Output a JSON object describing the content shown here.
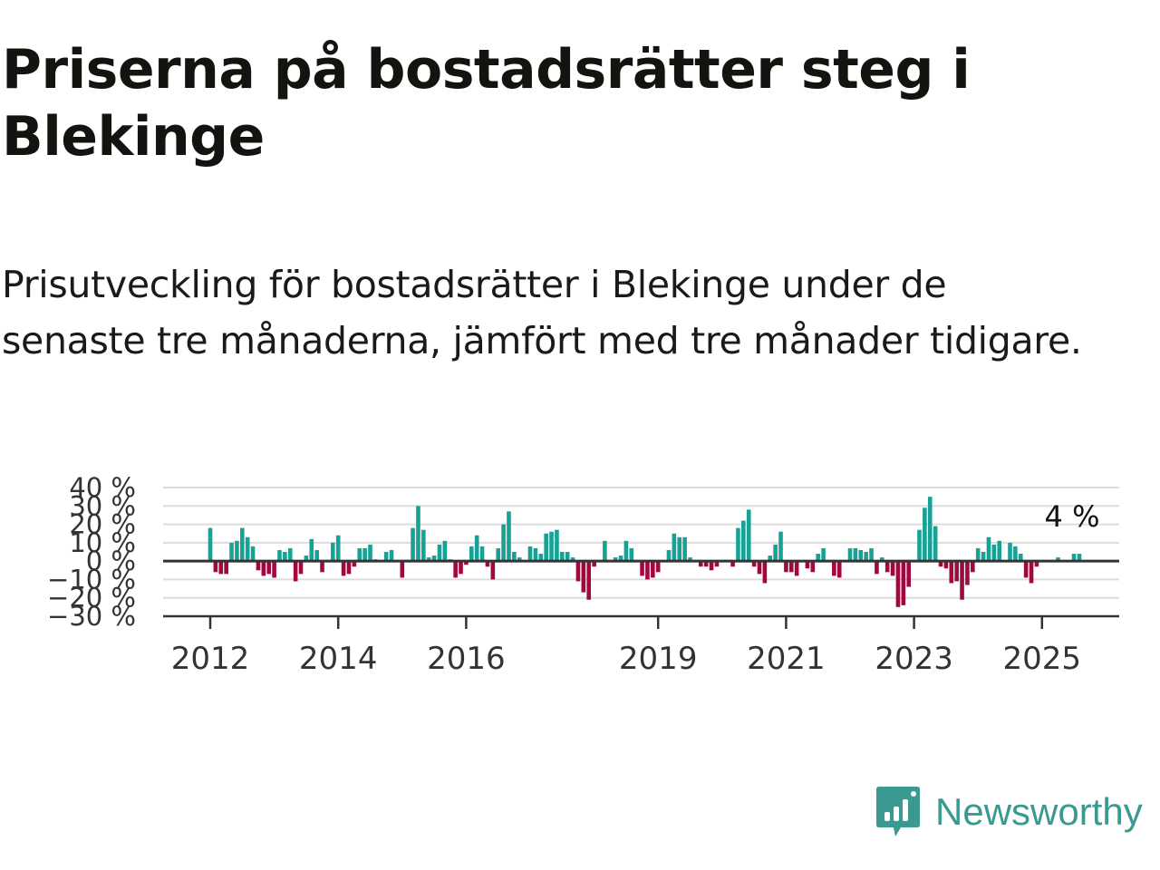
{
  "title": "Priserna på bostadsrätter steg i Blekinge",
  "subtitle": "Prisutveckling för bostadsrätter i Blekinge under de senaste tre månaderna, jämfört med tre månader tidigare.",
  "brand": {
    "name": "Newsworthy",
    "color": "#3a9a92"
  },
  "chart_data": {
    "type": "bar",
    "x_start": "2012-01",
    "y_unit": "%",
    "ylim": [
      -30,
      40
    ],
    "y_ticks": [
      40,
      30,
      20,
      10,
      0,
      -10,
      -20,
      -30
    ],
    "y_tick_labels": [
      "40 %",
      "30 %",
      "20 %",
      "10 %",
      "0 %",
      "−10 %",
      "−20 %",
      "−30 %"
    ],
    "x_ticks": [
      "2012",
      "2014",
      "2016",
      "2019",
      "2021",
      "2023",
      "2025"
    ],
    "grid": true,
    "positive_color": "#16a294",
    "negative_color": "#a3073f",
    "last_value_label": "4 %",
    "values": [
      18,
      -6,
      -7,
      -7,
      10,
      11,
      18,
      13,
      8,
      -5,
      -8,
      -7,
      -9,
      6,
      5,
      7,
      -11,
      -7,
      3,
      12,
      6,
      -6,
      0,
      10,
      14,
      -8,
      -7,
      -3,
      7,
      7,
      9,
      1,
      0,
      5,
      6,
      0,
      -9,
      0,
      18,
      30,
      17,
      2,
      3,
      9,
      11,
      1,
      -9,
      -7,
      -2,
      8,
      14,
      8,
      -3,
      -10,
      7,
      20,
      27,
      5,
      2,
      0,
      8,
      7,
      4,
      15,
      16,
      17,
      5,
      5,
      2,
      -11,
      -17,
      -21,
      -3,
      0,
      11,
      0,
      2,
      3,
      11,
      7,
      0,
      -8,
      -10,
      -9,
      -6,
      0,
      6,
      15,
      13,
      13,
      2,
      0,
      -3,
      -3,
      -5,
      -3,
      0,
      0,
      -3,
      18,
      22,
      28,
      -3,
      -7,
      -12,
      3,
      9,
      16,
      -6,
      -6,
      -8,
      0,
      -4,
      -6,
      4,
      7,
      0,
      -8,
      -9,
      0,
      7,
      7,
      6,
      5,
      7,
      -7,
      2,
      -6,
      -8,
      -25,
      -24,
      -14,
      0,
      17,
      29,
      35,
      19,
      -3,
      -4,
      -12,
      -11,
      -21,
      -13,
      -6,
      7,
      5,
      13,
      9,
      11,
      0,
      10,
      8,
      4,
      -9,
      -12,
      -3,
      0,
      0,
      0,
      2,
      0,
      0,
      4,
      4
    ]
  }
}
